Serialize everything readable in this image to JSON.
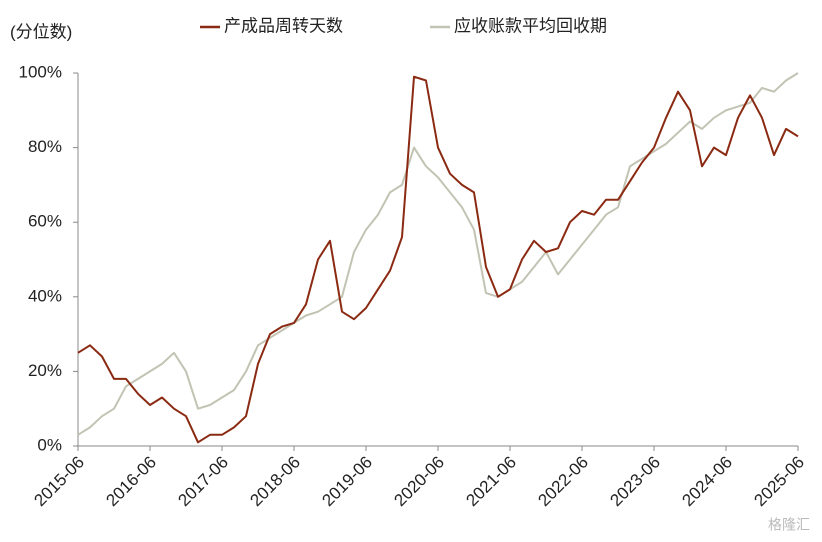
{
  "chart_data": {
    "type": "line",
    "ylabel": "(分位数)",
    "watermark": "格隆汇",
    "categories": [
      "2015-06",
      null,
      null,
      null,
      null,
      null,
      "2016-06",
      null,
      null,
      null,
      null,
      null,
      "2017-06",
      null,
      null,
      null,
      null,
      null,
      "2018-06",
      null,
      null,
      null,
      null,
      null,
      "2019-06",
      null,
      null,
      null,
      null,
      null,
      "2020-06",
      null,
      null,
      null,
      null,
      null,
      "2021-06",
      null,
      null,
      null,
      null,
      null,
      "2022-06",
      null,
      null,
      null,
      null,
      null,
      "2023-06",
      null,
      null,
      null,
      null,
      null,
      "2024-06",
      null,
      null,
      null,
      null,
      null,
      "2025-06"
    ],
    "series": [
      {
        "name": "产成品周转天数",
        "color": "#8b2a12",
        "values": [
          25,
          27,
          24,
          18,
          18,
          14,
          11,
          13,
          10,
          8,
          1,
          3,
          3,
          5,
          8,
          22,
          30,
          32,
          33,
          38,
          50,
          55,
          36,
          34,
          37,
          42,
          47,
          56,
          99,
          98,
          80,
          73,
          70,
          68,
          48,
          40,
          42,
          50,
          55,
          52,
          53,
          60,
          63,
          62,
          66,
          66,
          71,
          76,
          80,
          88,
          95,
          90,
          75,
          80,
          78,
          88,
          94,
          88,
          78,
          85,
          83
        ]
      },
      {
        "name": "应收账款平均回收期",
        "color": "#c3c3b3",
        "values": [
          3,
          5,
          8,
          10,
          16,
          18,
          20,
          22,
          25,
          20,
          10,
          11,
          13,
          15,
          20,
          27,
          29,
          31,
          33,
          35,
          36,
          38,
          40,
          52,
          58,
          62,
          68,
          70,
          80,
          75,
          72,
          68,
          64,
          58,
          41,
          40,
          42,
          44,
          48,
          52,
          46,
          50,
          54,
          58,
          62,
          64,
          75,
          77,
          79,
          81,
          84,
          87,
          85,
          88,
          90,
          91,
          92,
          96,
          95,
          98,
          100
        ]
      }
    ],
    "ylim": [
      0,
      100
    ],
    "yticks": [
      {
        "value": 0,
        "label": "0%"
      },
      {
        "value": 20,
        "label": "20%"
      },
      {
        "value": 40,
        "label": "40%"
      },
      {
        "value": 60,
        "label": "60%"
      },
      {
        "value": 80,
        "label": "80%"
      },
      {
        "value": 100,
        "label": "100%"
      }
    ],
    "grid": false
  }
}
